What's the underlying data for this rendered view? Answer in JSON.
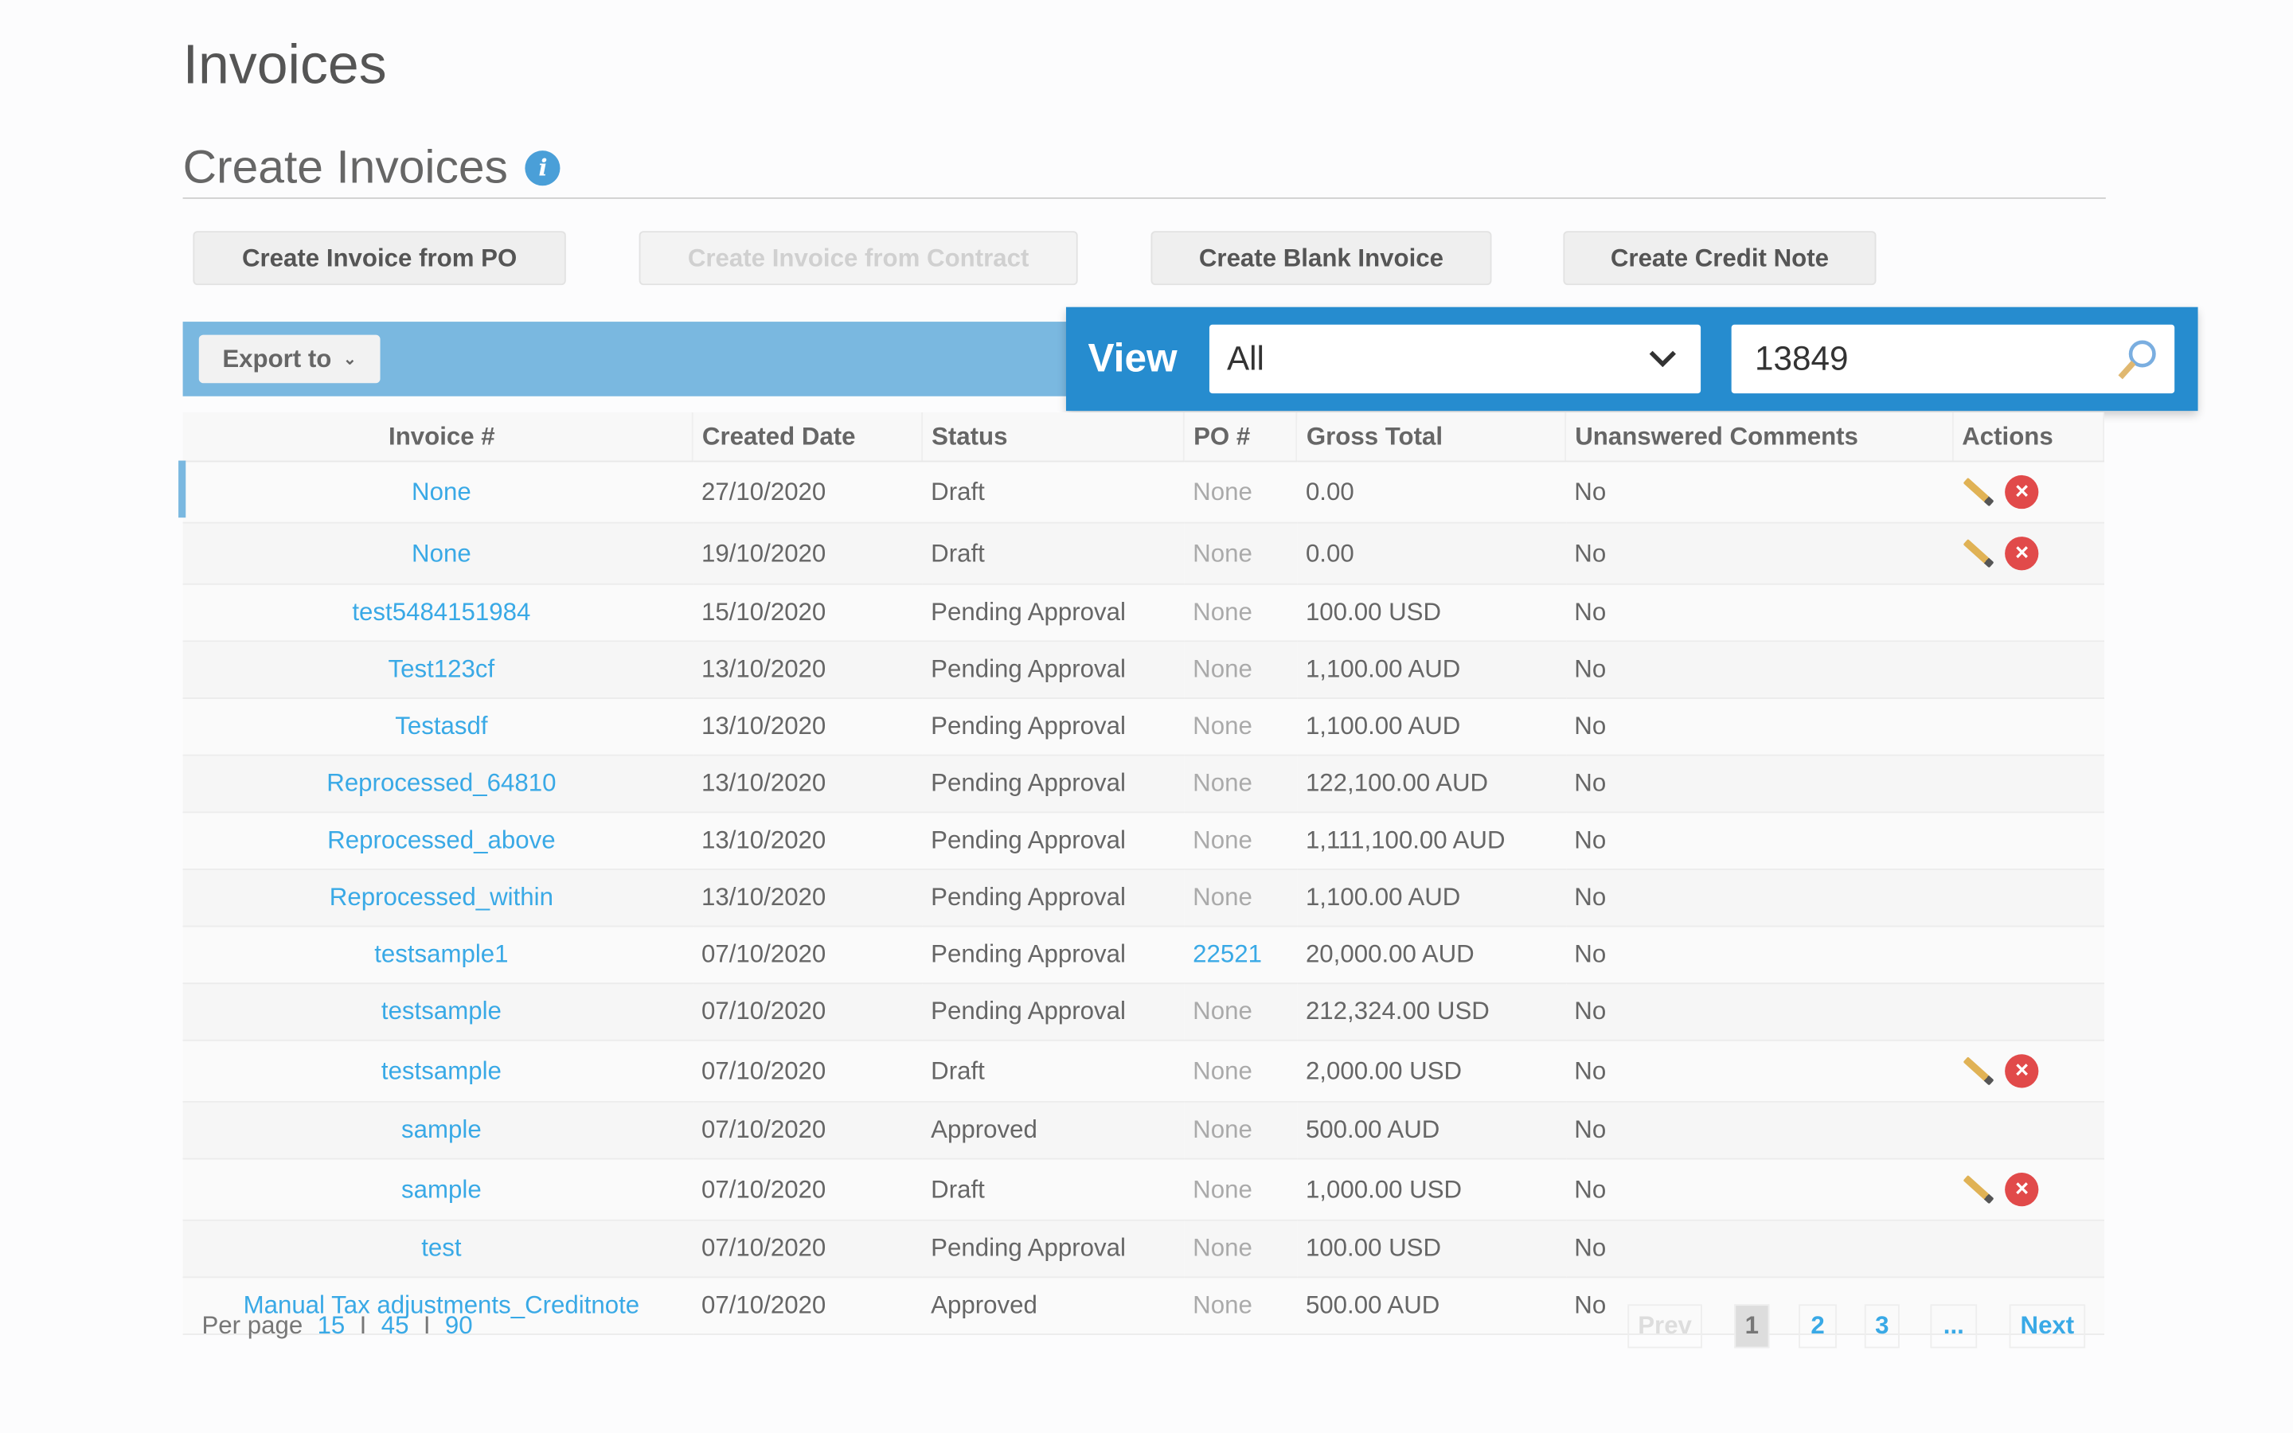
{
  "page": {
    "title": "Invoices",
    "subtitle": "Create Invoices",
    "info_icon": "info-icon"
  },
  "buttons": {
    "from_po": "Create Invoice from PO",
    "from_contract": "Create Invoice from Contract",
    "blank": "Create Blank Invoice",
    "credit_note": "Create Credit Note"
  },
  "toolbar": {
    "export": "Export to",
    "view_label": "View",
    "view_value": "All",
    "search_value": "13849"
  },
  "colors": {
    "accent": "#268ccf",
    "bar": "#7ab8e0",
    "link": "#39a9e6",
    "delete": "#e14a4a"
  },
  "table": {
    "columns": [
      "Invoice #",
      "Created Date",
      "Status",
      "PO #",
      "Gross Total",
      "Unanswered Comments",
      "Actions"
    ],
    "rows": [
      {
        "invoice": "None",
        "date": "27/10/2020",
        "status": "Draft",
        "po": "None",
        "total": "0.00",
        "comments": "No",
        "actions": true
      },
      {
        "invoice": "None",
        "date": "19/10/2020",
        "status": "Draft",
        "po": "None",
        "total": "0.00",
        "comments": "No",
        "actions": true
      },
      {
        "invoice": "test5484151984",
        "date": "15/10/2020",
        "status": "Pending Approval",
        "po": "None",
        "total": "100.00 USD",
        "comments": "No",
        "actions": false
      },
      {
        "invoice": "Test123cf",
        "date": "13/10/2020",
        "status": "Pending Approval",
        "po": "None",
        "total": "1,100.00 AUD",
        "comments": "No",
        "actions": false
      },
      {
        "invoice": "Testasdf",
        "date": "13/10/2020",
        "status": "Pending Approval",
        "po": "None",
        "total": "1,100.00 AUD",
        "comments": "No",
        "actions": false
      },
      {
        "invoice": "Reprocessed_64810",
        "date": "13/10/2020",
        "status": "Pending Approval",
        "po": "None",
        "total": "122,100.00 AUD",
        "comments": "No",
        "actions": false
      },
      {
        "invoice": "Reprocessed_above",
        "date": "13/10/2020",
        "status": "Pending Approval",
        "po": "None",
        "total": "1,111,100.00 AUD",
        "comments": "No",
        "actions": false
      },
      {
        "invoice": "Reprocessed_within",
        "date": "13/10/2020",
        "status": "Pending Approval",
        "po": "None",
        "total": "1,100.00 AUD",
        "comments": "No",
        "actions": false
      },
      {
        "invoice": "testsample1",
        "date": "07/10/2020",
        "status": "Pending Approval",
        "po": "22521",
        "po_link": true,
        "total": "20,000.00 AUD",
        "comments": "No",
        "actions": false
      },
      {
        "invoice": "testsample",
        "date": "07/10/2020",
        "status": "Pending Approval",
        "po": "None",
        "total": "212,324.00 USD",
        "comments": "No",
        "actions": false
      },
      {
        "invoice": "testsample",
        "date": "07/10/2020",
        "status": "Draft",
        "po": "None",
        "total": "2,000.00 USD",
        "comments": "No",
        "actions": true
      },
      {
        "invoice": "sample",
        "date": "07/10/2020",
        "status": "Approved",
        "po": "None",
        "total": "500.00 AUD",
        "comments": "No",
        "actions": false
      },
      {
        "invoice": "sample",
        "date": "07/10/2020",
        "status": "Draft",
        "po": "None",
        "total": "1,000.00 USD",
        "comments": "No",
        "actions": true
      },
      {
        "invoice": "test",
        "date": "07/10/2020",
        "status": "Pending Approval",
        "po": "None",
        "total": "100.00 USD",
        "comments": "No",
        "actions": false
      },
      {
        "invoice": "Manual Tax adjustments_Creditnote",
        "date": "07/10/2020",
        "status": "Approved",
        "po": "None",
        "total": "500.00 AUD",
        "comments": "No",
        "actions": false
      }
    ]
  },
  "footer": {
    "per_page_label": "Per page",
    "per_page_options": [
      "15",
      "45",
      "90"
    ],
    "separator": "I",
    "prev": "Prev",
    "pages": [
      "1",
      "2",
      "3",
      "..."
    ],
    "current_page": "1",
    "next": "Next"
  }
}
